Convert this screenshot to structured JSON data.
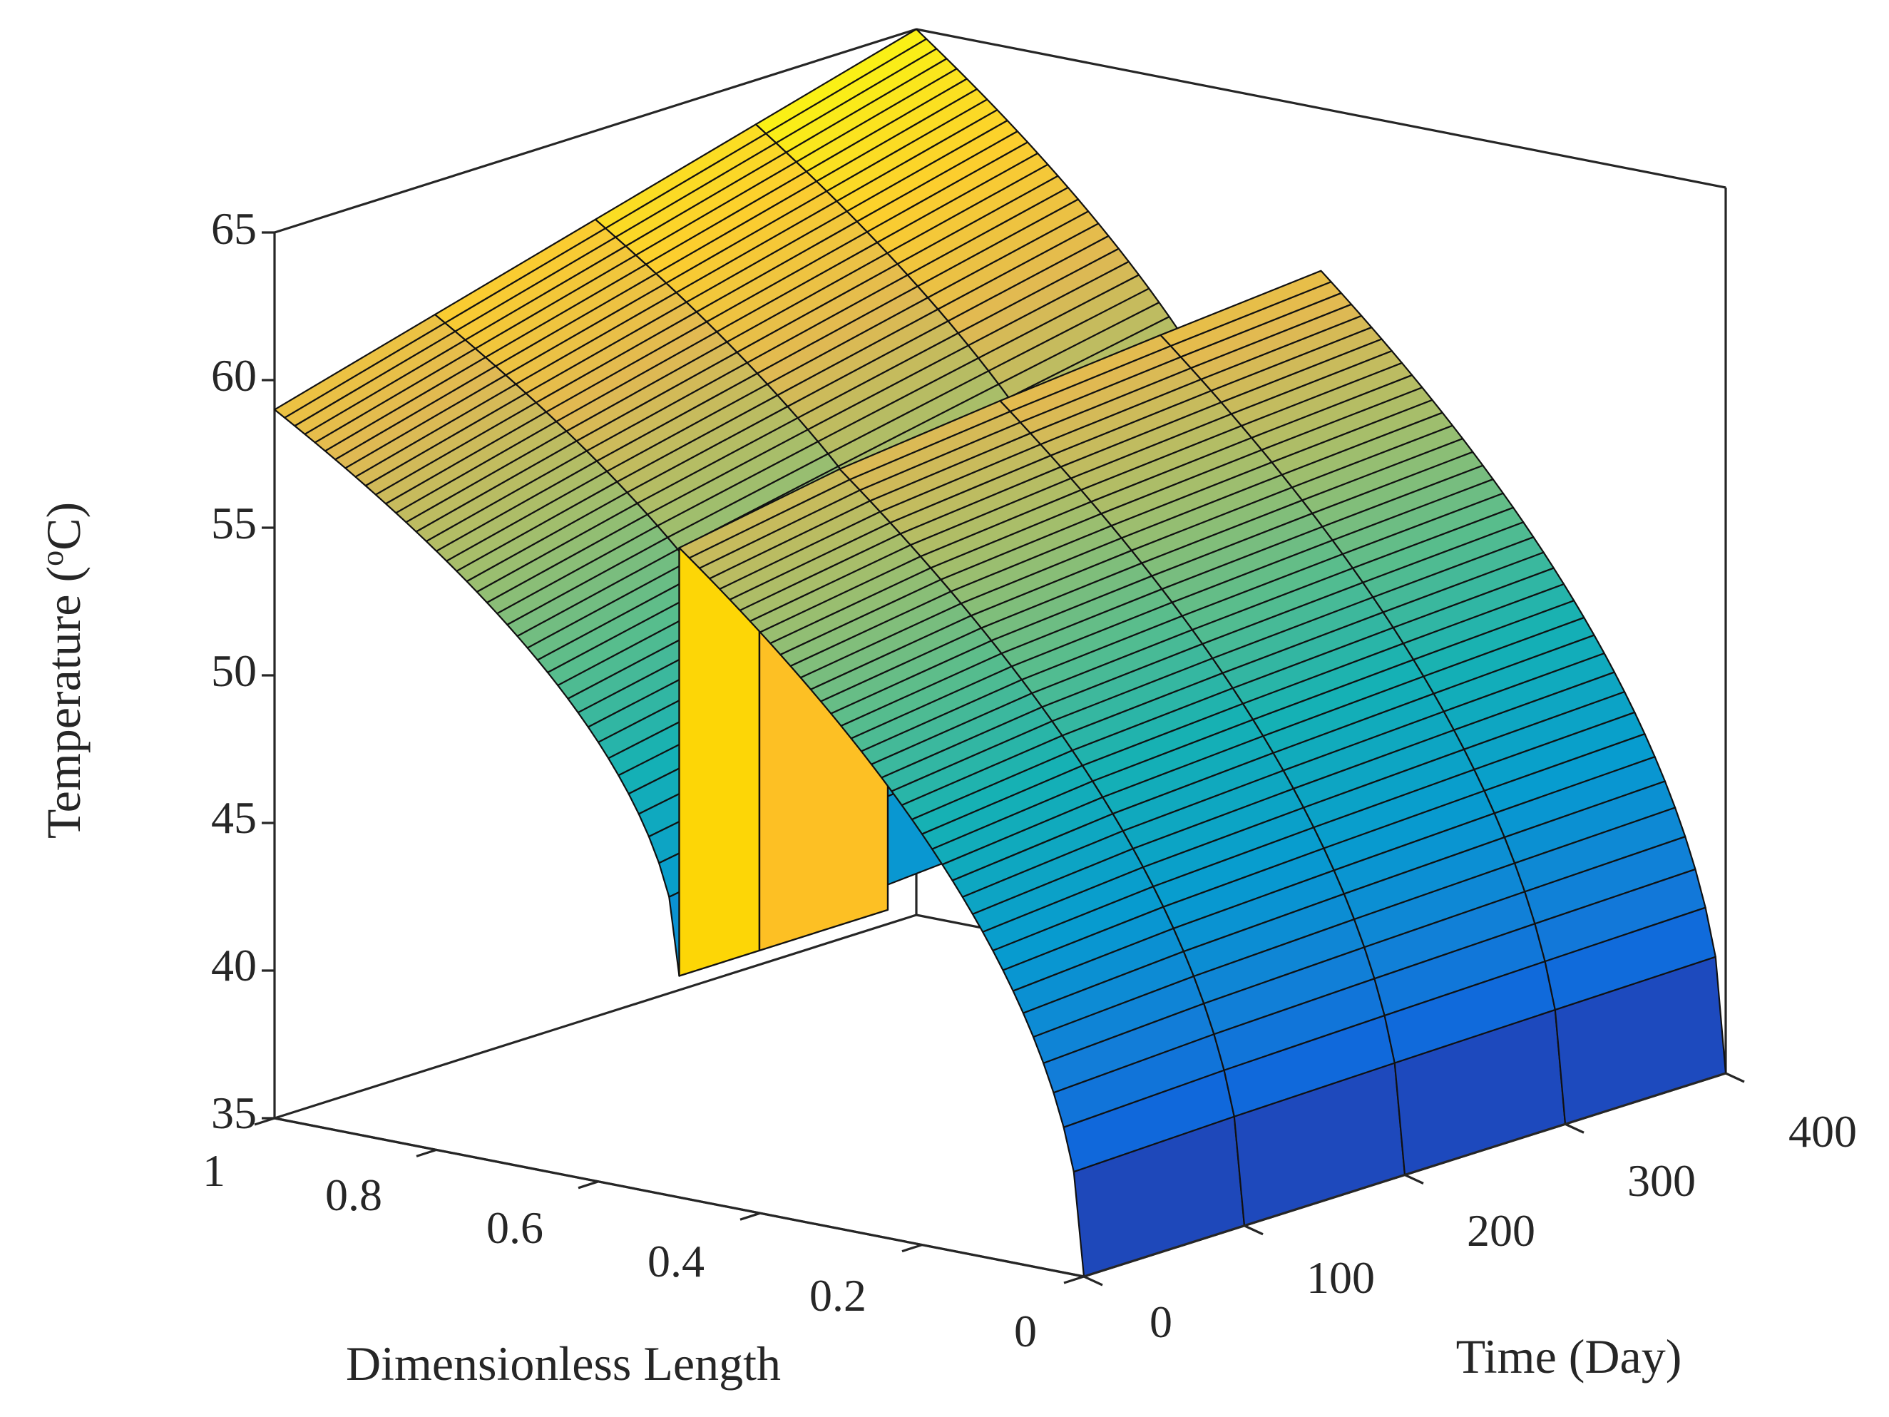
{
  "chart_data": {
    "type": "surface",
    "title": "",
    "xlabel": "Dimensionless Length",
    "ylabel": "Time (Day)",
    "zlabel": "Temperature (",
    "zlabel_sup": "o",
    "zlabel_end": "C)",
    "xlim": [
      0,
      1
    ],
    "ylim": [
      0,
      400
    ],
    "zlim": [
      35,
      65
    ],
    "x_ticks": [
      "0",
      "0.2",
      "0.4",
      "0.6",
      "0.8",
      "1"
    ],
    "y_ticks": [
      "0",
      "100",
      "200",
      "300",
      "400"
    ],
    "z_ticks": [
      "35",
      "40",
      "45",
      "50",
      "55",
      "60",
      "65"
    ],
    "colormap": "parula",
    "grid": false,
    "box": true,
    "surfaces": [
      {
        "name": "second-half-surface",
        "description_free": true,
        "x_range": [
          0.5,
          1.0
        ],
        "y_range": [
          0,
          400
        ],
        "x_edge_values": {
          "0.5": [
            42.5,
            43.0,
            43.5,
            44.0,
            44.2
          ],
          "1.0": [
            59,
            60.5,
            62,
            63.5,
            65
          ]
        },
        "n_x_lines": 40,
        "n_y_lines": 5
      },
      {
        "name": "first-half-surface",
        "x_range": [
          0.0,
          0.5
        ],
        "y_range": [
          0,
          400
        ],
        "x_edge_values": {
          "0.0": [
            35.0,
            35.0,
            35.0,
            35.0,
            35.0
          ],
          "0.5": [
            57.0,
            57.8,
            58.5,
            59.0,
            59.5
          ]
        },
        "n_x_lines": 40,
        "n_y_lines": 5
      },
      {
        "name": "vertical-wall",
        "x": 0.5,
        "y_range": [
          0,
          130
        ],
        "z_range": [
          42.5,
          57.0
        ]
      }
    ]
  }
}
